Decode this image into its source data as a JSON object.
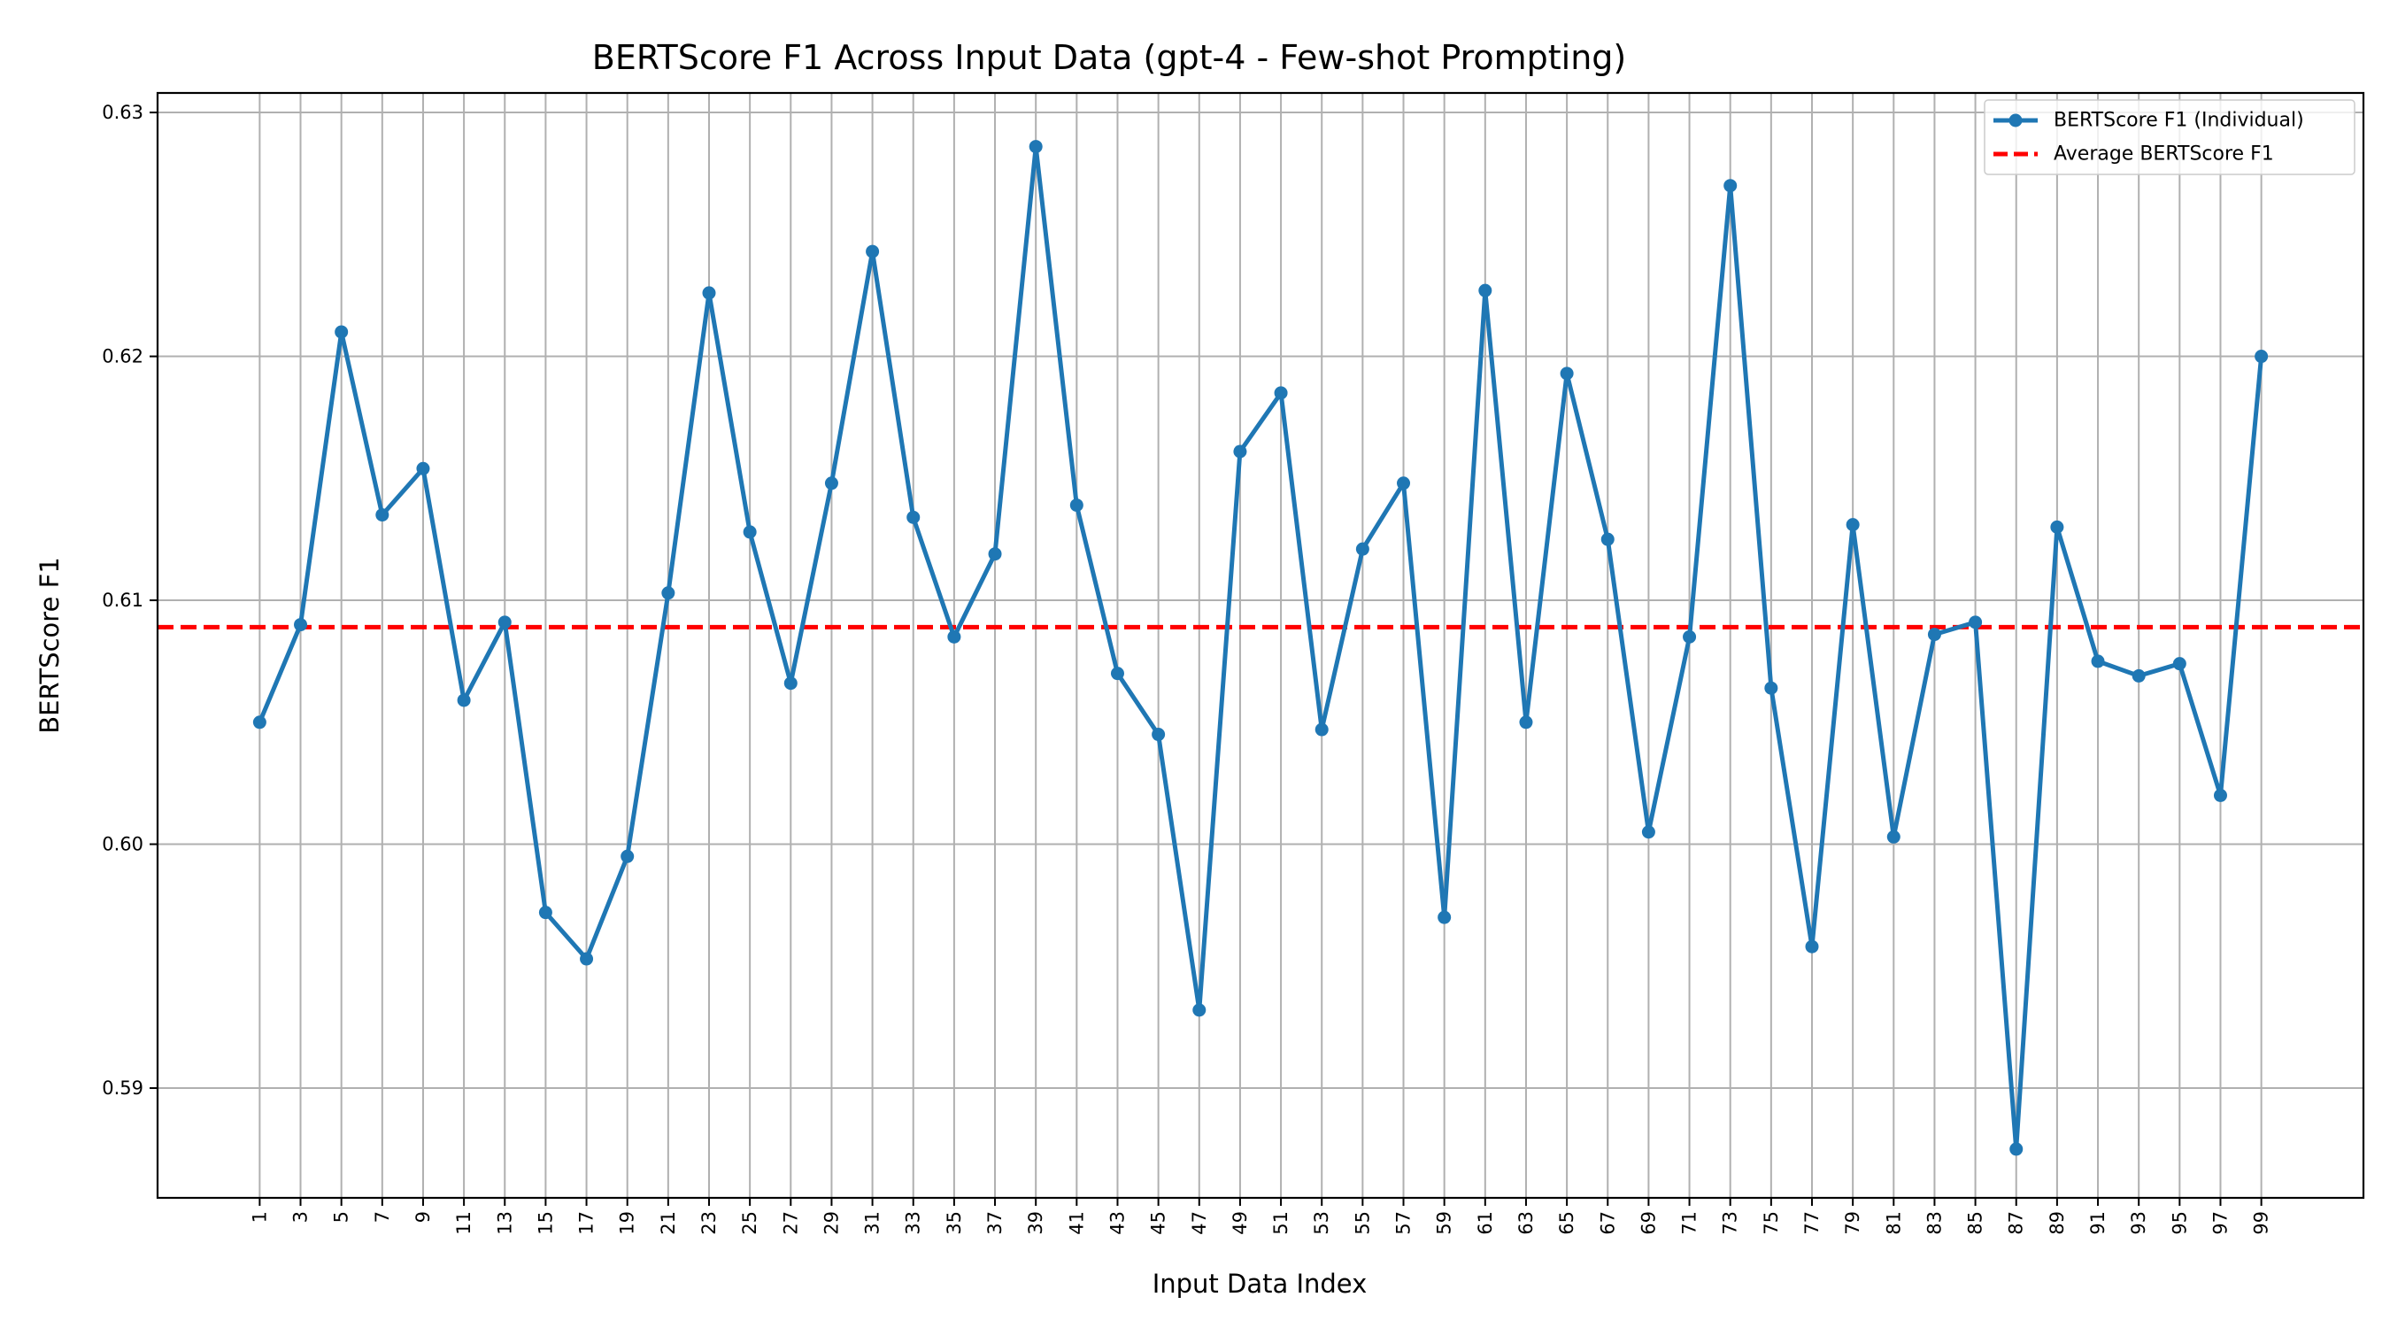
{
  "chart_data": {
    "type": "line",
    "title": "BERTScore F1 Across Input Data (gpt-4 - Few-shot Prompting)",
    "xlabel": "Input Data Index",
    "ylabel": "BERTScore F1",
    "x": [
      1,
      3,
      5,
      7,
      9,
      11,
      13,
      15,
      17,
      19,
      21,
      23,
      25,
      27,
      29,
      31,
      33,
      35,
      37,
      39,
      41,
      43,
      45,
      47,
      49,
      51,
      53,
      55,
      57,
      59,
      61,
      63,
      65,
      67,
      69,
      71,
      73,
      75,
      77,
      79,
      81,
      83,
      85,
      87,
      89,
      91,
      93,
      95,
      97,
      99
    ],
    "x_ticks": [
      1,
      3,
      5,
      7,
      9,
      11,
      13,
      15,
      17,
      19,
      21,
      23,
      25,
      27,
      29,
      31,
      33,
      35,
      37,
      39,
      41,
      43,
      45,
      47,
      49,
      51,
      53,
      55,
      57,
      59,
      61,
      63,
      65,
      67,
      69,
      71,
      73,
      75,
      77,
      79,
      81,
      83,
      85,
      87,
      89,
      91,
      93,
      95,
      97,
      99
    ],
    "y_ticks": [
      0.59,
      0.6,
      0.61,
      0.62,
      0.63
    ],
    "y_tick_labels": [
      "0.59",
      "0.60",
      "0.61",
      "0.62",
      "0.63"
    ],
    "xlim": [
      -4,
      104
    ],
    "ylim": [
      0.5855,
      0.6308
    ],
    "grid": true,
    "legend_position": "top-right",
    "series": [
      {
        "name": "BERTScore F1 (Individual)",
        "color": "#1f77b4",
        "style": "solid-with-markers",
        "values": [
          0.605,
          0.609,
          0.621,
          0.6135,
          0.6154,
          0.6059,
          0.6091,
          0.5972,
          0.5953,
          0.5995,
          0.6103,
          0.6226,
          0.6128,
          0.6066,
          0.6148,
          0.6243,
          0.6134,
          0.6085,
          0.6119,
          0.6286,
          0.6139,
          0.607,
          0.6045,
          0.5932,
          0.6161,
          0.6185,
          0.6047,
          0.6121,
          0.6148,
          0.597,
          0.6227,
          0.605,
          0.6193,
          0.6125,
          0.6005,
          0.6085,
          0.627,
          0.6064,
          0.5958,
          0.6131,
          0.6003,
          0.6086,
          0.6091,
          0.5875,
          0.613,
          0.6075,
          0.6069,
          0.6074,
          0.602,
          0.62
        ]
      },
      {
        "name": "Average BERTScore F1",
        "color": "#ff0000",
        "style": "dashed",
        "value": 0.6089
      }
    ]
  }
}
